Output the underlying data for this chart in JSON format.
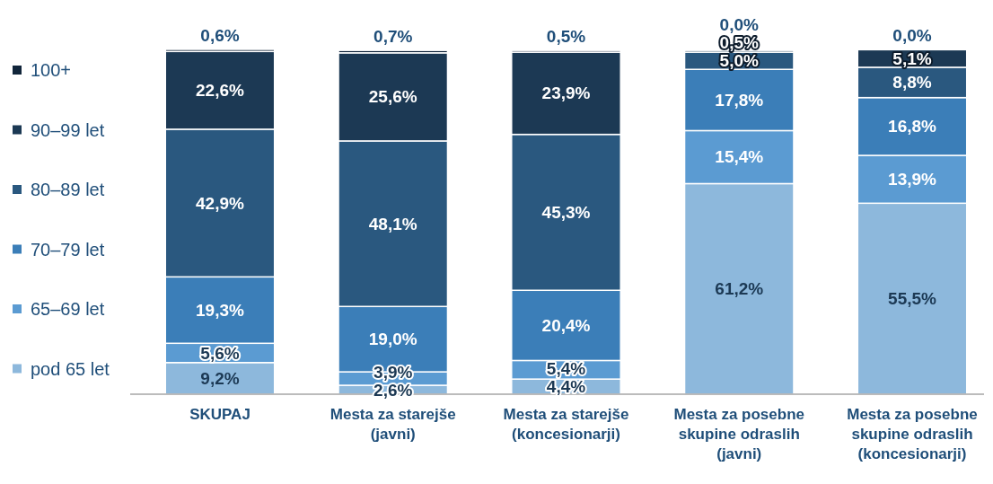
{
  "chart_data": {
    "type": "bar",
    "stacked": true,
    "tick_labels": "x",
    "legend": "left",
    "categories": [
      "SKUPAJ",
      "Mesta za starejše (javni)",
      "Mesta za starejše (koncesionarji)",
      "Mesta za posebne skupine odraslih (javni)",
      "Mesta za posebne skupine odraslih (koncesionarji)"
    ],
    "series": [
      {
        "name": "pod 65 let",
        "color": "#8db8dc",
        "values": [
          9.2,
          2.6,
          4.4,
          61.2,
          55.5
        ],
        "value_labels": [
          "9,2%",
          "2,6%",
          "4,4%",
          "61,2%",
          "55,5%"
        ]
      },
      {
        "name": "65–69 let",
        "color": "#5b9bd2",
        "values": [
          5.6,
          3.9,
          5.4,
          15.4,
          13.9
        ],
        "value_labels": [
          "5,6%",
          "3,9%",
          "5,4%",
          "15,4%",
          "13,9%"
        ]
      },
      {
        "name": "70–79 let",
        "color": "#3b7eb8",
        "values": [
          19.3,
          19.0,
          20.4,
          17.8,
          16.8
        ],
        "value_labels": [
          "19,3%",
          "19,0%",
          "20,4%",
          "17,8%",
          "16,8%"
        ]
      },
      {
        "name": "80–89 let",
        "color": "#2a587f",
        "values": [
          42.9,
          48.1,
          45.3,
          5.0,
          8.8
        ],
        "value_labels": [
          "42,9%",
          "48,1%",
          "45,3%",
          "5,0%",
          "8,8%"
        ]
      },
      {
        "name": "90–99 let",
        "color": "#1c3954",
        "values": [
          22.6,
          25.6,
          23.9,
          0.5,
          5.1
        ],
        "value_labels": [
          "22,6%",
          "25,6%",
          "23,9%",
          "0,5%",
          "5,1%"
        ]
      },
      {
        "name": "100+",
        "color": "#11253a",
        "values": [
          0.6,
          0.7,
          0.5,
          0.0,
          0.0
        ],
        "value_labels": [
          "0,6%",
          "0,7%",
          "0,5%",
          "0,0%",
          "0,0%"
        ]
      }
    ]
  }
}
